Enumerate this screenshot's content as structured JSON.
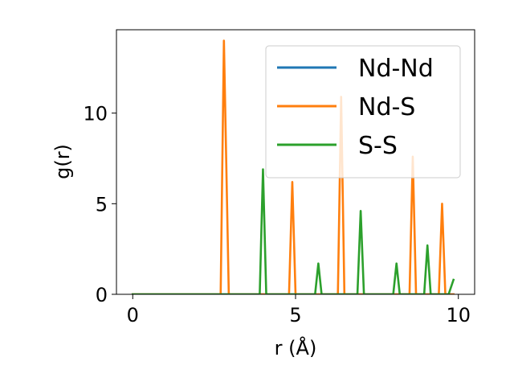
{
  "chart_data": {
    "type": "line",
    "title": "",
    "xlabel": "r (Å)",
    "ylabel": "g(r)",
    "xlim": [
      -0.5,
      10.5
    ],
    "ylim": [
      0,
      14.6
    ],
    "xticks": [
      0,
      5,
      10
    ],
    "yticks": [
      0,
      5,
      10
    ],
    "grid": false,
    "legend_position": "top-right",
    "series": [
      {
        "name": "Nd-Nd",
        "color": "#1f77b4",
        "points": [
          [
            0,
            0
          ],
          [
            9.85,
            0
          ]
        ]
      },
      {
        "name": "Nd-S",
        "color": "#ff7f0e",
        "points": [
          [
            0,
            0
          ],
          [
            2.7,
            0
          ],
          [
            2.8,
            14.0
          ],
          [
            2.95,
            0
          ],
          [
            4.8,
            0
          ],
          [
            4.9,
            6.2
          ],
          [
            5.0,
            0
          ],
          [
            6.3,
            0
          ],
          [
            6.4,
            10.9
          ],
          [
            6.5,
            0
          ],
          [
            8.5,
            0
          ],
          [
            8.6,
            7.6
          ],
          [
            8.7,
            0
          ],
          [
            9.4,
            0
          ],
          [
            9.5,
            5.0
          ],
          [
            9.6,
            0
          ],
          [
            9.85,
            0
          ]
        ]
      },
      {
        "name": "S-S",
        "color": "#2ca02c",
        "points": [
          [
            0,
            0
          ],
          [
            3.9,
            0
          ],
          [
            4.0,
            6.9
          ],
          [
            4.1,
            0
          ],
          [
            5.6,
            0
          ],
          [
            5.7,
            1.7
          ],
          [
            5.8,
            0
          ],
          [
            6.9,
            0
          ],
          [
            7.0,
            4.6
          ],
          [
            7.1,
            0
          ],
          [
            8.0,
            0
          ],
          [
            8.1,
            1.7
          ],
          [
            8.2,
            0
          ],
          [
            8.95,
            0
          ],
          [
            9.05,
            2.7
          ],
          [
            9.15,
            0
          ],
          [
            9.7,
            0
          ],
          [
            9.85,
            0.8
          ]
        ]
      }
    ]
  }
}
